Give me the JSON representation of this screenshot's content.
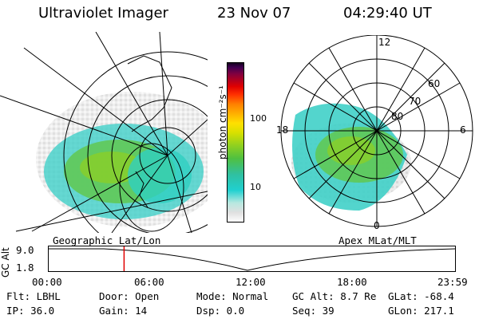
{
  "header": {
    "instrument": "Ultraviolet Imager",
    "date": "23 Nov 07",
    "time": "04:29:40 UT"
  },
  "left_panel": {
    "caption": "Geographic Lat/Lon"
  },
  "right_panel": {
    "caption": "Apex MLat/MLT",
    "lat_labels": [
      "80",
      "70",
      "60"
    ],
    "mlt_labels": {
      "top": "12",
      "left": "18",
      "right": "6",
      "bottom": "0"
    }
  },
  "colorbar": {
    "unit": "photon cm⁻²s⁻¹",
    "ticks": [
      "100",
      "10"
    ],
    "colors": [
      "#ffffff",
      "#e0e0e0",
      "#b8e8e0",
      "#20d0d0",
      "#30c0a0",
      "#50c040",
      "#90d020",
      "#d8e000",
      "#ffe000",
      "#ffb000",
      "#ff8000",
      "#ff3000",
      "#e00000",
      "#b00020",
      "#800040",
      "#400050",
      "#10001a"
    ]
  },
  "alt_plot": {
    "ylabel": "GC Alt",
    "yticks": [
      "9.0",
      "1.8"
    ],
    "xticks": [
      "00:00",
      "06:00",
      "12:00",
      "18:00",
      "23:59"
    ],
    "marker_time_hours": 4.49
  },
  "info": {
    "row1": {
      "flt": "Flt: LBHL",
      "door": "Door: Open",
      "mode": "Mode: Normal",
      "gcalt": "GC Alt: 8.7 Re",
      "glat": "GLat: -68.4"
    },
    "row2": {
      "ip": "IP: 36.0",
      "gain": "Gain: 14",
      "dsp": "Dsp:    0.0",
      "seq": "Seq: 39",
      "glon": "GLon: 217.1"
    }
  }
}
